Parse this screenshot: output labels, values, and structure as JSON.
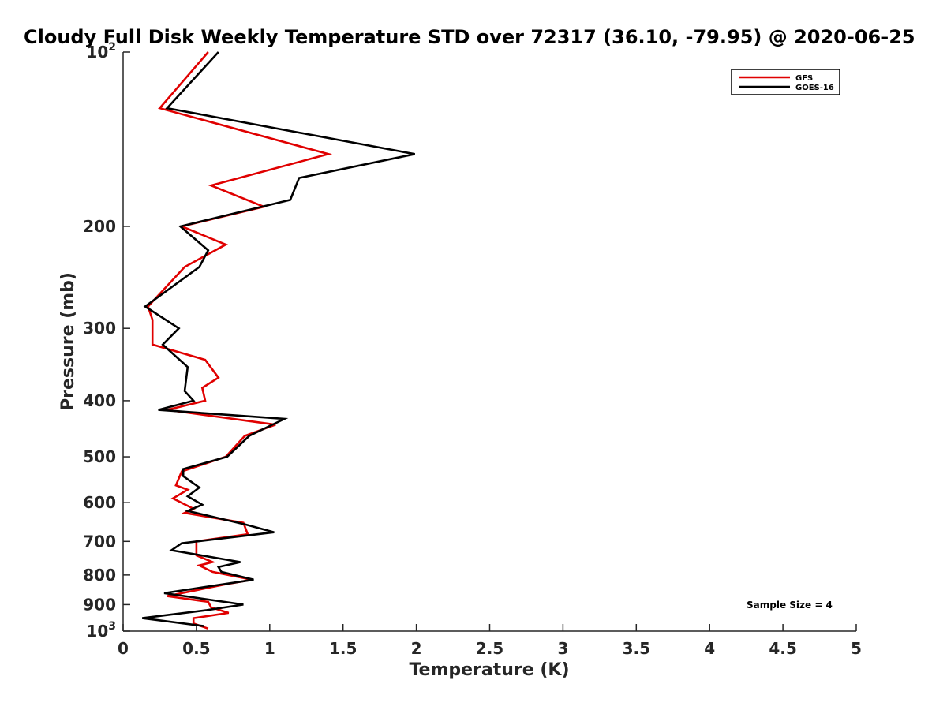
{
  "chart_data": {
    "type": "line",
    "title": "Cloudy Full Disk Weekly Temperature STD over 72317 (36.10, -79.95) @ 2020-06-25",
    "xlabel": "Temperature (K)",
    "ylabel": "Pressure (mb)",
    "xlim": [
      0,
      5
    ],
    "ylim": [
      100,
      1000
    ],
    "y_scale": "log",
    "y_reversed": true,
    "x_ticks": [
      0,
      0.5,
      1,
      1.5,
      2,
      2.5,
      3,
      3.5,
      4,
      4.5,
      5
    ],
    "x_tick_labels": [
      "0",
      "0.5",
      "1",
      "1.5",
      "2",
      "2.5",
      "3",
      "3.5",
      "4",
      "4.5",
      "5"
    ],
    "y_ticks": [
      {
        "value": 100,
        "label": "10",
        "sup": "2"
      },
      {
        "value": 200,
        "label": "200",
        "sup": ""
      },
      {
        "value": 300,
        "label": "300",
        "sup": ""
      },
      {
        "value": 400,
        "label": "400",
        "sup": ""
      },
      {
        "value": 500,
        "label": "500",
        "sup": ""
      },
      {
        "value": 600,
        "label": "600",
        "sup": ""
      },
      {
        "value": 700,
        "label": "700",
        "sup": ""
      },
      {
        "value": 800,
        "label": "800",
        "sup": ""
      },
      {
        "value": 900,
        "label": "900",
        "sup": ""
      },
      {
        "value": 1000,
        "label": "10",
        "sup": "3"
      }
    ],
    "grid": false,
    "legend_position": "top-right",
    "annotation": "Sample Size = 4",
    "series": [
      {
        "name": "GFS",
        "color": "#e00000",
        "points": [
          [
            0.58,
            100
          ],
          [
            0.25,
            125
          ],
          [
            1.4,
            150
          ],
          [
            0.6,
            170
          ],
          [
            0.96,
            185
          ],
          [
            0.4,
            200
          ],
          [
            0.7,
            215
          ],
          [
            0.42,
            235
          ],
          [
            0.17,
            275
          ],
          [
            0.2,
            290
          ],
          [
            0.2,
            320
          ],
          [
            0.56,
            340
          ],
          [
            0.65,
            365
          ],
          [
            0.54,
            380
          ],
          [
            0.56,
            400
          ],
          [
            0.3,
            415
          ],
          [
            1.04,
            440
          ],
          [
            0.83,
            460
          ],
          [
            0.7,
            500
          ],
          [
            0.4,
            530
          ],
          [
            0.36,
            560
          ],
          [
            0.44,
            570
          ],
          [
            0.34,
            590
          ],
          [
            0.48,
            615
          ],
          [
            0.42,
            625
          ],
          [
            0.82,
            650
          ],
          [
            0.85,
            680
          ],
          [
            0.5,
            700
          ],
          [
            0.5,
            740
          ],
          [
            0.61,
            760
          ],
          [
            0.52,
            770
          ],
          [
            0.61,
            790
          ],
          [
            0.88,
            815
          ],
          [
            0.7,
            830
          ],
          [
            0.3,
            870
          ],
          [
            0.58,
            890
          ],
          [
            0.6,
            910
          ],
          [
            0.72,
            930
          ],
          [
            0.48,
            950
          ],
          [
            0.48,
            970
          ],
          [
            0.58,
            990
          ]
        ]
      },
      {
        "name": "GOES-16",
        "color": "#000000",
        "points": [
          [
            0.65,
            100
          ],
          [
            0.3,
            125
          ],
          [
            1.99,
            150
          ],
          [
            1.2,
            165
          ],
          [
            1.14,
            180
          ],
          [
            0.39,
            200
          ],
          [
            0.58,
            220
          ],
          [
            0.52,
            235
          ],
          [
            0.15,
            275
          ],
          [
            0.38,
            300
          ],
          [
            0.27,
            320
          ],
          [
            0.44,
            350
          ],
          [
            0.42,
            385
          ],
          [
            0.48,
            400
          ],
          [
            0.24,
            415
          ],
          [
            1.1,
            430
          ],
          [
            0.86,
            460
          ],
          [
            0.71,
            500
          ],
          [
            0.41,
            525
          ],
          [
            0.41,
            540
          ],
          [
            0.52,
            565
          ],
          [
            0.44,
            585
          ],
          [
            0.54,
            605
          ],
          [
            0.44,
            620
          ],
          [
            0.84,
            655
          ],
          [
            1.03,
            675
          ],
          [
            0.4,
            705
          ],
          [
            0.33,
            725
          ],
          [
            0.8,
            760
          ],
          [
            0.65,
            775
          ],
          [
            0.67,
            790
          ],
          [
            0.89,
            815
          ],
          [
            0.28,
            860
          ],
          [
            0.82,
            900
          ],
          [
            0.57,
            920
          ],
          [
            0.13,
            950
          ],
          [
            0.55,
            980
          ]
        ]
      }
    ]
  }
}
